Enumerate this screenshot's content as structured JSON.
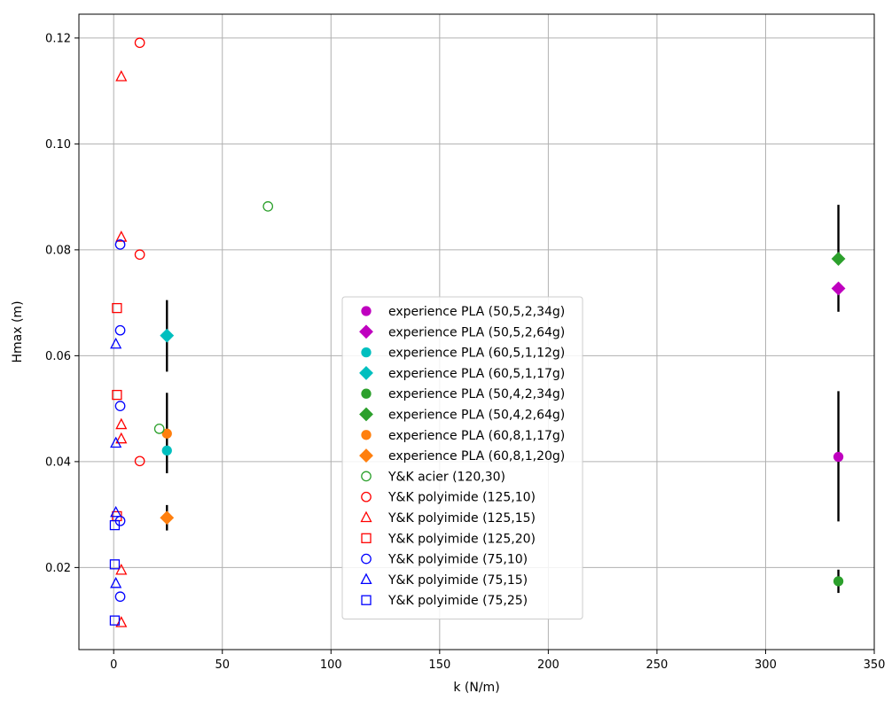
{
  "chart_data": {
    "type": "scatter",
    "title": "",
    "xlabel": "k (N/m)",
    "ylabel": "Hmax (m)",
    "xlim": [
      -16,
      350
    ],
    "ylim": [
      0.0045,
      0.1245
    ],
    "xticks": [
      0,
      50,
      100,
      150,
      200,
      250,
      300,
      350
    ],
    "yticks": [
      0.02,
      0.04,
      0.06,
      0.08,
      0.1,
      0.12
    ],
    "ytick_labels": [
      "0.02",
      "0.04",
      "0.06",
      "0.08",
      "0.10",
      "0.12"
    ],
    "grid": true,
    "legend_position": "center",
    "series": [
      {
        "name": "experience PLA (50,5,2,34g)",
        "color": "#bf00bf",
        "marker": "circle",
        "filled": true,
        "points": [
          {
            "x": 333.5,
            "y": 0.0409,
            "yerr": [
              0.0122,
              0.0124
            ]
          }
        ]
      },
      {
        "name": "experience PLA (50,5,2,64g)",
        "color": "#bf00bf",
        "marker": "diamond",
        "filled": true,
        "points": [
          {
            "x": 333.5,
            "y": 0.0727,
            "yerr": [
              0.0044,
              0.0
            ]
          }
        ]
      },
      {
        "name": "experience PLA (60,5,1,12g)",
        "color": "#00bfbf",
        "marker": "circle",
        "filled": true,
        "points": [
          {
            "x": 24.5,
            "y": 0.0421,
            "yerr": [
              0.0,
              0.0
            ]
          }
        ]
      },
      {
        "name": "experience PLA (60,5,1,17g)",
        "color": "#00bfbf",
        "marker": "diamond",
        "filled": true,
        "points": [
          {
            "x": 24.5,
            "y": 0.0638,
            "yerr": [
              0.0068,
              0.0067
            ]
          }
        ]
      },
      {
        "name": "experience PLA (50,4,2,34g)",
        "color": "#2ca02c",
        "marker": "circle",
        "filled": true,
        "points": [
          {
            "x": 333.5,
            "y": 0.0174,
            "yerr": [
              0.0022,
              0.0022
            ]
          }
        ]
      },
      {
        "name": "experience PLA (50,4,2,64g)",
        "color": "#2ca02c",
        "marker": "diamond",
        "filled": true,
        "points": [
          {
            "x": 333.5,
            "y": 0.0783,
            "yerr": [
              0.0,
              0.0102
            ]
          }
        ]
      },
      {
        "name": "experience PLA (60,8,1,17g)",
        "color": "#ff7f0e",
        "marker": "circle",
        "filled": true,
        "points": [
          {
            "x": 24.5,
            "y": 0.0453,
            "yerr": [
              0.0075,
              0.0077
            ]
          }
        ]
      },
      {
        "name": "experience PLA (60,8,1,20g)",
        "color": "#ff7f0e",
        "marker": "diamond",
        "filled": true,
        "points": [
          {
            "x": 24.5,
            "y": 0.0294,
            "yerr": [
              0.0024,
              0.0024
            ]
          }
        ]
      },
      {
        "name": "Y&K acier (120,30)",
        "color": "#2ca02c",
        "marker": "circle",
        "filled": false,
        "points": [
          {
            "x": 71,
            "y": 0.0882
          },
          {
            "x": 21,
            "y": 0.0462
          }
        ]
      },
      {
        "name": "Y&K polyimide (125,10)",
        "color": "#ff0000",
        "marker": "circle",
        "filled": false,
        "points": [
          {
            "x": 12,
            "y": 0.1191
          },
          {
            "x": 12,
            "y": 0.0791
          },
          {
            "x": 12,
            "y": 0.0401
          }
        ]
      },
      {
        "name": "Y&K polyimide (125,15)",
        "color": "#ff0000",
        "marker": "triangle",
        "filled": false,
        "points": [
          {
            "x": 3.5,
            "y": 0.1127
          },
          {
            "x": 3.5,
            "y": 0.0824
          },
          {
            "x": 3.5,
            "y": 0.047
          },
          {
            "x": 3.5,
            "y": 0.0443
          },
          {
            "x": 3.5,
            "y": 0.0195
          },
          {
            "x": 3.5,
            "y": 0.0096
          }
        ]
      },
      {
        "name": "Y&K polyimide (125,20)",
        "color": "#ff0000",
        "marker": "square",
        "filled": false,
        "points": [
          {
            "x": 1.5,
            "y": 0.069
          },
          {
            "x": 1.5,
            "y": 0.0526
          },
          {
            "x": 1.5,
            "y": 0.0297
          }
        ]
      },
      {
        "name": "Y&K polyimide (75,10)",
        "color": "#0000ff",
        "marker": "circle",
        "filled": false,
        "points": [
          {
            "x": 3,
            "y": 0.081
          },
          {
            "x": 3,
            "y": 0.0648
          },
          {
            "x": 3,
            "y": 0.0505
          },
          {
            "x": 3,
            "y": 0.0288
          },
          {
            "x": 3,
            "y": 0.0145
          }
        ]
      },
      {
        "name": "Y&K polyimide (75,15)",
        "color": "#0000ff",
        "marker": "triangle",
        "filled": false,
        "points": [
          {
            "x": 1,
            "y": 0.0622
          },
          {
            "x": 1,
            "y": 0.0435
          },
          {
            "x": 1,
            "y": 0.0304
          },
          {
            "x": 1,
            "y": 0.017
          }
        ]
      },
      {
        "name": "Y&K polyimide (75,25)",
        "color": "#0000ff",
        "marker": "square",
        "filled": false,
        "points": [
          {
            "x": 0.5,
            "y": 0.028
          },
          {
            "x": 0.5,
            "y": 0.0206
          },
          {
            "x": 0.5,
            "y": 0.01
          }
        ]
      }
    ]
  }
}
